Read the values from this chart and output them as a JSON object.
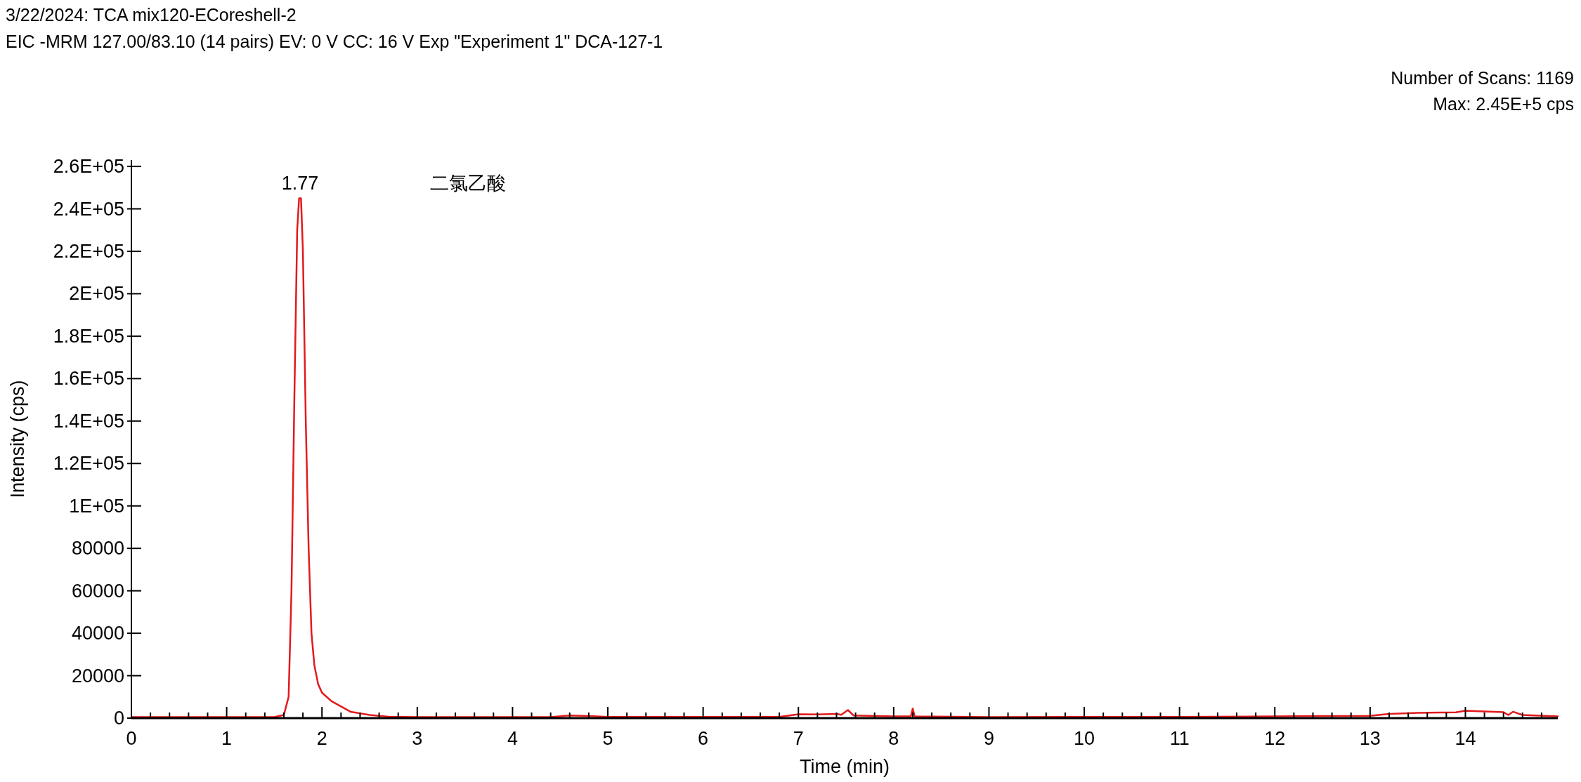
{
  "chart_data": {
    "type": "line",
    "title": "3/22/2024: TCA mix120-ECoreshell-2",
    "subtitle": "EIC -MRM 127.00/83.10 (14 pairs) EV: 0 V CC: 16 V Exp \"Experiment 1\" DCA-127-1",
    "xlabel": "Time (min)",
    "ylabel": "Intensity (cps)",
    "annotations": [
      "Number of Scans: 1169",
      "Max: 2.45E+5 cps",
      {
        "text": "1.77",
        "x": 1.77,
        "y": 245000
      },
      "二氯乙酸"
    ],
    "xlim": [
      0,
      14.97
    ],
    "ylim": [
      0,
      263000
    ],
    "xticks": [
      0,
      {
        "value": 0.2,
        "label": null
      },
      {
        "value": 0.4,
        "label": null
      },
      {
        "value": 0.6,
        "label": null
      },
      {
        "value": 0.8,
        "label": null
      },
      1,
      {
        "value": 1.2,
        "label": null
      },
      {
        "value": 1.4,
        "label": null
      },
      {
        "value": 1.6,
        "label": null
      },
      {
        "value": 1.8,
        "label": null
      },
      2,
      {
        "value": 2.2,
        "label": null
      },
      {
        "value": 2.4,
        "label": null
      },
      {
        "value": 2.6,
        "label": null
      },
      {
        "value": 2.8,
        "label": null
      },
      3,
      {
        "value": 3.2,
        "label": null
      },
      {
        "value": 3.4,
        "label": null
      },
      {
        "value": 3.6,
        "label": null
      },
      {
        "value": 3.8,
        "label": null
      },
      4,
      {
        "value": 4.2,
        "label": null
      },
      {
        "value": 4.4,
        "label": null
      },
      {
        "value": 4.6,
        "label": null
      },
      {
        "value": 4.8,
        "label": null
      },
      5,
      {
        "value": 5.2,
        "label": null
      },
      {
        "value": 5.4,
        "label": null
      },
      {
        "value": 5.6,
        "label": null
      },
      {
        "value": 5.8,
        "label": null
      },
      6,
      {
        "value": 6.2,
        "label": null
      },
      {
        "value": 6.4,
        "label": null
      },
      {
        "value": 6.6,
        "label": null
      },
      {
        "value": 6.8,
        "label": null
      },
      7,
      {
        "value": 7.2,
        "label": null
      },
      {
        "value": 7.4,
        "label": null
      },
      {
        "value": 7.6,
        "label": null
      },
      {
        "value": 7.8,
        "label": null
      },
      8,
      {
        "value": 8.2,
        "label": null
      },
      {
        "value": 8.4,
        "label": null
      },
      {
        "value": 8.6,
        "label": null
      },
      {
        "value": 8.8,
        "label": null
      },
      9,
      {
        "value": 9.2,
        "label": null
      },
      {
        "value": 9.4,
        "label": null
      },
      {
        "value": 9.6,
        "label": null
      },
      {
        "value": 9.8,
        "label": null
      },
      10,
      {
        "value": 10.2,
        "label": null
      },
      {
        "value": 10.4,
        "label": null
      },
      {
        "value": 10.6,
        "label": null
      },
      {
        "value": 10.8,
        "label": null
      },
      11,
      {
        "value": 11.2,
        "label": null
      },
      {
        "value": 11.4,
        "label": null
      },
      {
        "value": 11.6,
        "label": null
      },
      {
        "value": 11.8,
        "label": null
      },
      12,
      {
        "value": 12.2,
        "label": null
      },
      {
        "value": 12.4,
        "label": null
      },
      {
        "value": 12.6,
        "label": null
      },
      {
        "value": 12.8,
        "label": null
      },
      13,
      {
        "value": 13.2,
        "label": null
      },
      {
        "value": 13.4,
        "label": null
      },
      {
        "value": 13.6,
        "label": null
      },
      {
        "value": 13.8,
        "label": null
      },
      14,
      {
        "value": 14.2,
        "label": null
      },
      {
        "value": 14.4,
        "label": null
      },
      {
        "value": 14.6,
        "label": null
      },
      {
        "value": 14.8,
        "label": null
      }
    ],
    "yticks": [
      0,
      20000,
      40000,
      60000,
      80000,
      {
        "value": 100000,
        "label": "1E+05"
      },
      {
        "value": 120000,
        "label": "1.2E+05"
      },
      {
        "value": 140000,
        "label": "1.4E+05"
      },
      {
        "value": 160000,
        "label": "1.6E+05"
      },
      {
        "value": 180000,
        "label": "1.8E+05"
      },
      {
        "value": 200000,
        "label": "2E+05"
      },
      {
        "value": 220000,
        "label": "2.2E+05"
      },
      {
        "value": 240000,
        "label": "2.4E+05"
      },
      {
        "value": 260000,
        "label": "2.6E+05"
      }
    ],
    "series": [
      {
        "color": "#e31a1c",
        "x": [
          0,
          1.5,
          1.6,
          1.65,
          1.68,
          1.71,
          1.74,
          1.76,
          1.78,
          1.8,
          1.83,
          1.86,
          1.89,
          1.92,
          1.96,
          2.0,
          2.1,
          2.2,
          2.3,
          2.5,
          2.7,
          3.0,
          4.4,
          4.6,
          4.8,
          5.0,
          6.8,
          7.0,
          7.2,
          7.4,
          7.45,
          7.52,
          7.58,
          8.0,
          8.18,
          8.2,
          8.22,
          9,
          11,
          12,
          12.5,
          13,
          13.2,
          13.5,
          13.9,
          14.0,
          14.4,
          14.45,
          14.5,
          14.6,
          14.97
        ],
        "values": [
          500,
          500,
          1500,
          10000,
          60000,
          150000,
          230000,
          245000,
          245000,
          220000,
          140000,
          80000,
          40000,
          25000,
          16000,
          12000,
          8000,
          5500,
          3000,
          1500,
          700,
          500,
          500,
          1200,
          1000,
          600,
          600,
          1800,
          1700,
          2000,
          1600,
          3800,
          1200,
          800,
          800,
          4500,
          800,
          500,
          600,
          800,
          1000,
          1100,
          2000,
          2500,
          2700,
          3500,
          2800,
          1500,
          3000,
          1500,
          800
        ]
      }
    ]
  }
}
